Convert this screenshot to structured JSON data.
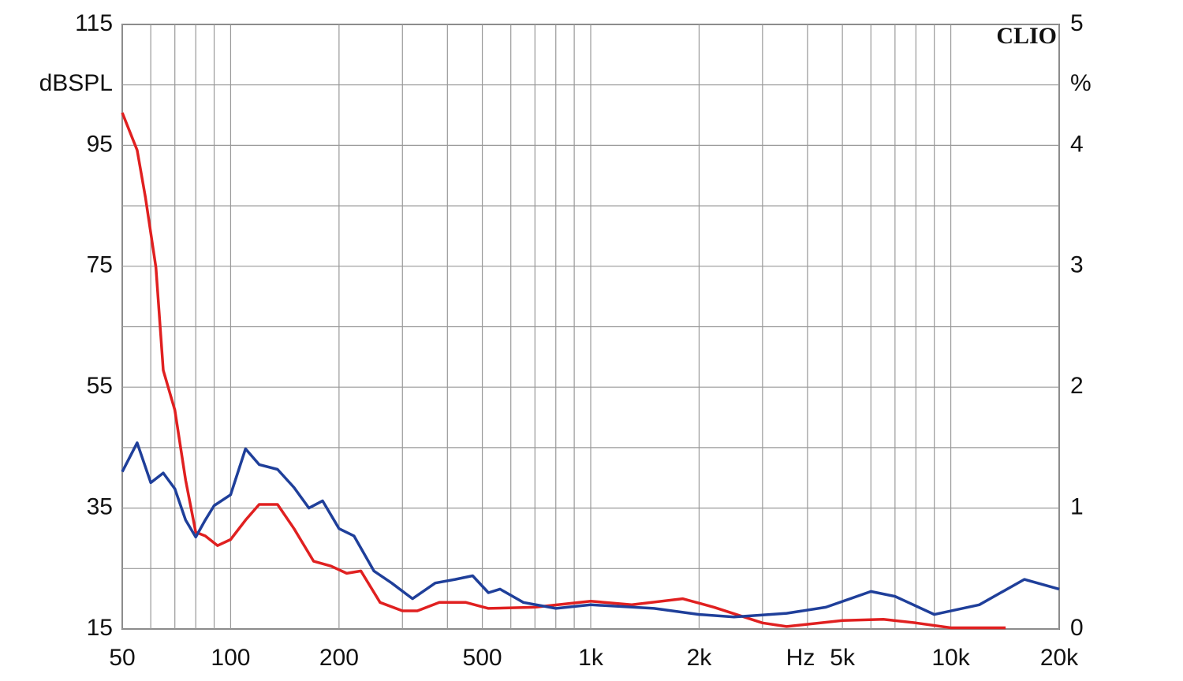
{
  "chart_data": {
    "type": "line",
    "logo": "CLIO",
    "xlabel": "Hz",
    "ylabel": "dBSPL",
    "y2label": "%",
    "xscale": "log",
    "xlim": [
      50,
      20000
    ],
    "xticks": [
      50,
      100,
      200,
      500,
      {
        "value": 1000,
        "label": "1k"
      },
      {
        "value": 2000,
        "label": "2k"
      },
      {
        "value": 5000,
        "label": "5k"
      },
      {
        "value": 10000,
        "label": "10k"
      },
      {
        "value": 20000,
        "label": "20k"
      }
    ],
    "xgrid": [
      50,
      60,
      70,
      80,
      90,
      100,
      200,
      300,
      400,
      500,
      600,
      700,
      800,
      900,
      1000,
      2000,
      3000,
      4000,
      5000,
      6000,
      7000,
      8000,
      9000,
      10000,
      20000
    ],
    "ylim": [
      15,
      115
    ],
    "yticks": [
      15,
      35,
      55,
      75,
      95,
      115
    ],
    "ygrid": [
      15,
      25,
      35,
      45,
      55,
      65,
      75,
      85,
      95,
      105,
      115
    ],
    "y2lim": [
      0,
      5
    ],
    "y2ticks": [
      0,
      1,
      2,
      3,
      4,
      5
    ],
    "grid": true,
    "series": [
      {
        "color": "#e02020",
        "axis": "y2",
        "x": [
          50,
          55,
          58,
          62,
          65,
          70,
          75,
          80,
          85,
          92,
          100,
          110,
          120,
          135,
          150,
          170,
          190,
          210,
          230,
          260,
          300,
          330,
          380,
          450,
          520,
          700,
          1000,
          1300,
          1800,
          2200,
          3000,
          3500,
          5000,
          6500,
          8000,
          10000,
          14200
        ],
        "values": [
          4.27,
          3.96,
          3.57,
          2.99,
          2.14,
          1.81,
          1.23,
          0.8,
          0.77,
          0.69,
          0.74,
          0.9,
          1.03,
          1.03,
          0.83,
          0.56,
          0.52,
          0.46,
          0.48,
          0.22,
          0.15,
          0.15,
          0.22,
          0.22,
          0.17,
          0.18,
          0.23,
          0.2,
          0.25,
          0.18,
          0.05,
          0.02,
          0.07,
          0.08,
          0.05,
          0.01,
          0.01
        ]
      },
      {
        "color": "#1f3f9a",
        "axis": "y2",
        "x": [
          50,
          55,
          60,
          65,
          70,
          75,
          80,
          85,
          90,
          100,
          110,
          120,
          135,
          150,
          165,
          180,
          200,
          220,
          250,
          280,
          320,
          370,
          420,
          470,
          520,
          560,
          650,
          800,
          1000,
          1500,
          2000,
          2500,
          3500,
          4500,
          6000,
          7000,
          9000,
          12000,
          16000,
          20000
        ],
        "values": [
          1.3,
          1.54,
          1.21,
          1.29,
          1.16,
          0.9,
          0.76,
          0.9,
          1.02,
          1.11,
          1.49,
          1.36,
          1.32,
          1.17,
          1.0,
          1.06,
          0.83,
          0.77,
          0.48,
          0.38,
          0.25,
          0.38,
          0.41,
          0.44,
          0.3,
          0.33,
          0.22,
          0.17,
          0.2,
          0.17,
          0.12,
          0.1,
          0.13,
          0.18,
          0.31,
          0.27,
          0.12,
          0.2,
          0.41,
          0.33
        ]
      }
    ]
  }
}
